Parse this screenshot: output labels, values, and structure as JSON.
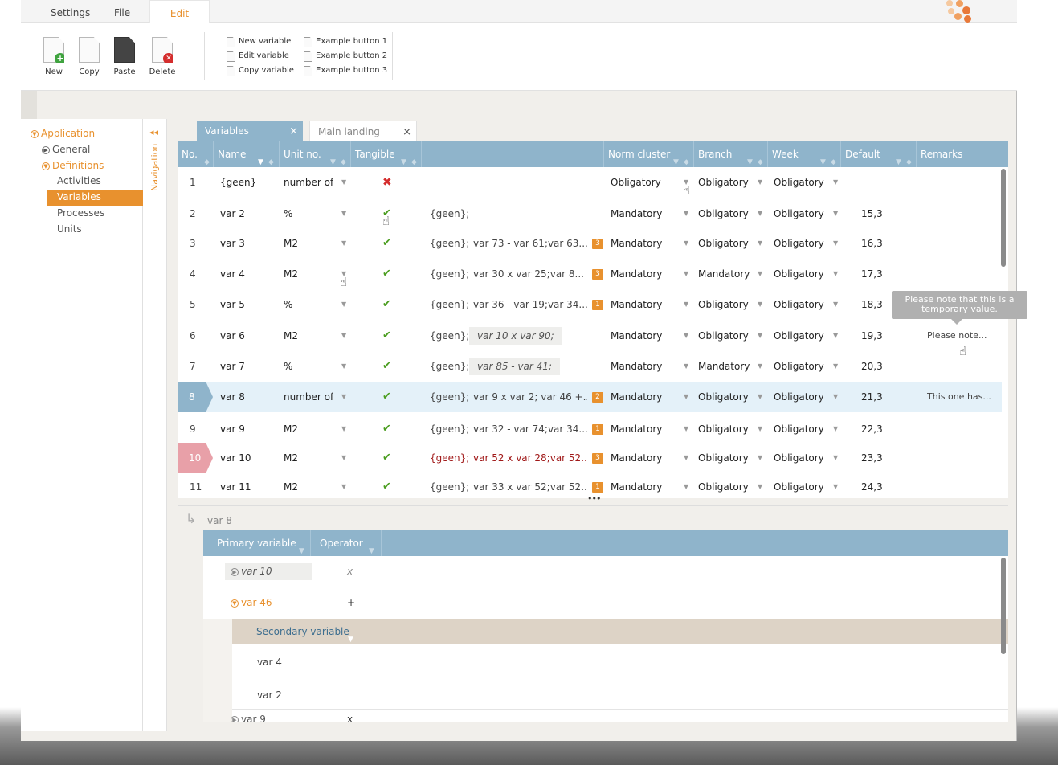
{
  "menu": {
    "tabs": [
      "Settings",
      "File",
      "Edit"
    ],
    "active": "Edit"
  },
  "ribbon": {
    "new_label": "New",
    "copy_label": "Copy",
    "paste_label": "Paste",
    "delete_label": "Delete",
    "new_variable": "New variable",
    "edit_variable": "Edit variable",
    "copy_variable": "Copy variable",
    "example1": "Example button 1",
    "example2": "Example button 2",
    "example3": "Example button 3"
  },
  "tree": {
    "application": "Application",
    "general": "General",
    "definitions": "Definitions",
    "activities": "Activities",
    "variables": "Variables",
    "processes": "Processes",
    "units": "Units"
  },
  "navigation_label": "Navigation",
  "tabs": {
    "variables": "Variables",
    "main_landing": "Main landing",
    "close": "×"
  },
  "grid": {
    "headers": {
      "no": "No.",
      "name": "Name",
      "unit": "Unit no.",
      "tangible": "Tangible",
      "norm": "Norm cluster",
      "branch": "Branch",
      "week": "Week",
      "default": "Default",
      "remarks": "Remarks"
    },
    "rows": [
      {
        "no": "1",
        "name": "{geen}",
        "unit": "number of",
        "tangible": "✖",
        "prefix": "",
        "formula": "",
        "count": "",
        "norm": "Obligatory",
        "branch": "Obligatory",
        "week": "Obligatory",
        "default": "",
        "remarks": ""
      },
      {
        "no": "2",
        "name": "var 2",
        "unit": "%",
        "tangible": "✔",
        "prefix": "{geen};",
        "formula": "",
        "count": "",
        "norm": "Mandatory",
        "branch": "Obligatory",
        "week": "Obligatory",
        "default": "15,3",
        "remarks": ""
      },
      {
        "no": "3",
        "name": "var 3",
        "unit": "M2",
        "tangible": "✔",
        "prefix": "{geen};",
        "formula": "var 73 - var 61;var 63...",
        "count": "3",
        "norm": "Mandatory",
        "branch": "Obligatory",
        "week": "Obligatory",
        "default": "16,3",
        "remarks": ""
      },
      {
        "no": "4",
        "name": "var 4",
        "unit": "M2",
        "tangible": "✔",
        "prefix": "{geen};",
        "formula": "var 30 x var 25;var 8...",
        "count": "3",
        "norm": "Mandatory",
        "branch": "Mandatory",
        "week": "Obligatory",
        "default": "17,3",
        "remarks": ""
      },
      {
        "no": "5",
        "name": "var 5",
        "unit": "%",
        "tangible": "✔",
        "prefix": "{geen};",
        "formula": "var 36 - var 19;var 34...",
        "count": "1",
        "norm": "Mandatory",
        "branch": "Obligatory",
        "week": "Obligatory",
        "default": "18,3",
        "remarks": ""
      },
      {
        "no": "6",
        "name": "var 6",
        "unit": "M2",
        "tangible": "✔",
        "prefix": "{geen};",
        "formula": "var 10 x var 90;",
        "count": "",
        "norm": "Mandatory",
        "branch": "Obligatory",
        "week": "Obligatory",
        "default": "19,3",
        "remarks": "Please note..."
      },
      {
        "no": "7",
        "name": "var 7",
        "unit": "%",
        "tangible": "✔",
        "prefix": "{geen};",
        "formula": "var 85 - var 41;",
        "count": "",
        "norm": "Mandatory",
        "branch": "Mandatory",
        "week": "Obligatory",
        "default": "20,3",
        "remarks": ""
      },
      {
        "no": "8",
        "name": "var 8",
        "unit": "number of",
        "tangible": "✔",
        "prefix": "{geen};",
        "formula": "var 9 x var 2;  var 46 +...",
        "count": "2",
        "norm": "Mandatory",
        "branch": "Obligatory",
        "week": "Obligatory",
        "default": "21,3",
        "remarks": "This one has..."
      },
      {
        "no": "9",
        "name": "var 9",
        "unit": "M2",
        "tangible": "✔",
        "prefix": "{geen};",
        "formula": "var 32 - var 74;var 34...",
        "count": "1",
        "norm": "Mandatory",
        "branch": "Obligatory",
        "week": "Obligatory",
        "default": "22,3",
        "remarks": ""
      },
      {
        "no": "10",
        "name": "var 10",
        "unit": "M2",
        "tangible": "✔",
        "prefix": "{geen};",
        "formula": "var 52 x var 28;var 52...",
        "count": "3",
        "norm": "Mandatory",
        "branch": "Obligatory",
        "week": "Obligatory",
        "default": "23,3",
        "remarks": ""
      },
      {
        "no": "11",
        "name": "var 11",
        "unit": "M2",
        "tangible": "✔",
        "prefix": "{geen};",
        "formula": "var 33 x var 52;var 52...",
        "count": "1",
        "norm": "Mandatory",
        "branch": "Obligatory",
        "week": "Obligatory",
        "default": "24,3",
        "remarks": ""
      }
    ]
  },
  "tooltip": "Please note that this is a temporary value.",
  "resize_handle": "•••",
  "detail": {
    "arrow": "↳",
    "title": "var 8",
    "headers": {
      "primary": "Primary variable",
      "operator": "Operator",
      "secondary": "Secondary variable"
    },
    "primary_rows": [
      {
        "name": "var 10",
        "operator": "x"
      },
      {
        "name": "var 46",
        "operator": "+"
      },
      {
        "name": "var 9",
        "operator": "x"
      }
    ],
    "secondary_rows": [
      "var 4",
      "var 2"
    ]
  },
  "colors": {
    "accent": "#e8912e",
    "header": "#8fb4cb",
    "selected_row": "#e4f1f9",
    "error_row": "#e8a0a8",
    "ok": "#4a9d1f",
    "error": "#d42d2d"
  }
}
